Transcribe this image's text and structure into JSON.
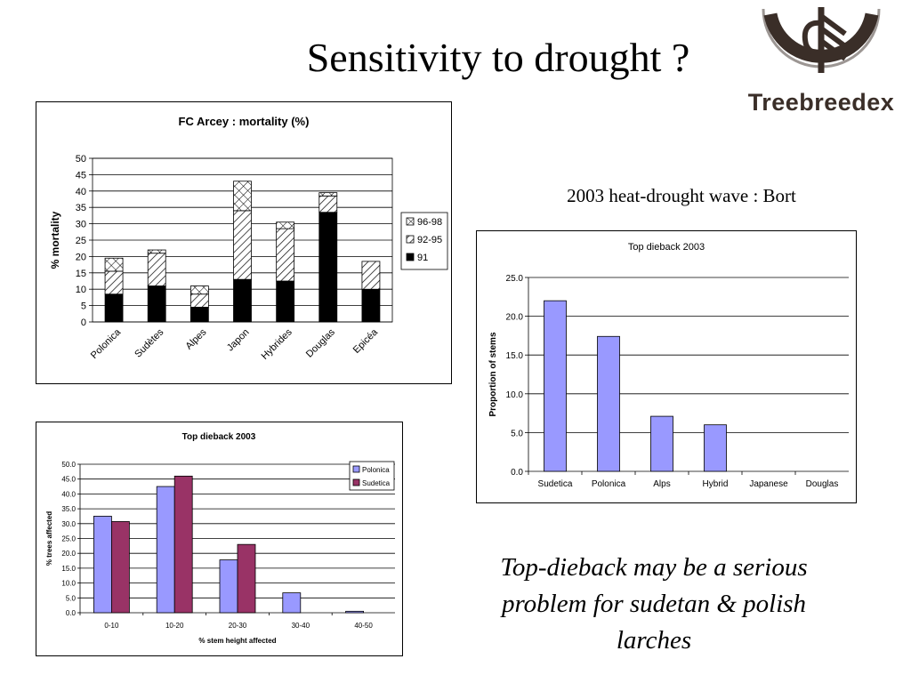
{
  "page": {
    "title": "Sensitivity to drought ?",
    "subtitle": "2003 heat-drought wave : Bort",
    "conclusion": "Top-dieback may be a serious problem for sudetan & polish larches",
    "logo_text": "Treebreedex"
  },
  "colors": {
    "logo_brown": "#3a2e28",
    "bar_blue": "#9999ff",
    "bar_maroon": "#993366",
    "black": "#000000"
  },
  "chart_data": [
    {
      "id": "mortality",
      "type": "bar",
      "stacked": true,
      "title": "FC Arcey : mortality (%)",
      "xlabel": "",
      "ylabel": "% mortality",
      "ylim": [
        0,
        50
      ],
      "yticks": [
        "0",
        "5",
        "10",
        "15",
        "20",
        "25",
        "30",
        "35",
        "40",
        "45",
        "50"
      ],
      "categories": [
        "Polonica",
        "Sudètes",
        "Alpes",
        "Japon",
        "Hybrides",
        "Douglas",
        "Epicéa"
      ],
      "series": [
        {
          "name": "91",
          "pattern": "solid",
          "values": [
            8.5,
            11,
            4.5,
            13,
            12.5,
            33.5,
            10
          ]
        },
        {
          "name": "92-95",
          "pattern": "diagonal",
          "values": [
            7,
            10,
            4,
            21,
            16,
            5,
            8.5
          ]
        },
        {
          "name": "96-98",
          "pattern": "crosshatch",
          "values": [
            4,
            1,
            2.5,
            9,
            2,
            1,
            0
          ]
        }
      ],
      "legend": "right",
      "legend_order": [
        "96-98",
        "92-95",
        "91"
      ],
      "grid": true
    },
    {
      "id": "dieback_bort",
      "type": "bar",
      "title": "Top dieback 2003",
      "xlabel": "",
      "ylabel": "Proportion of stems",
      "ylim": [
        0,
        25
      ],
      "yticks": [
        "0.0",
        "5.0",
        "10.0",
        "15.0",
        "20.0",
        "25.0"
      ],
      "categories": [
        "Sudetica",
        "Polonica",
        "Alps",
        "Hybrid",
        "Japanese",
        "Douglas"
      ],
      "series": [
        {
          "values": [
            22.0,
            17.4,
            7.1,
            6.0,
            0,
            0
          ]
        }
      ],
      "grid": true
    },
    {
      "id": "dieback_height",
      "type": "bar",
      "title": "Top dieback 2003",
      "xlabel": "% stem height affected",
      "ylabel": "% trees affected",
      "ylim": [
        0,
        50
      ],
      "yticks": [
        "0.0",
        "5.0",
        "10.0",
        "15.0",
        "20.0",
        "25.0",
        "30.0",
        "35.0",
        "40.0",
        "45.0",
        "50.0"
      ],
      "categories": [
        "0-10",
        "10-20",
        "20-30",
        "30-40",
        "40-50"
      ],
      "series": [
        {
          "name": "Polonica",
          "values": [
            32.5,
            42.5,
            17.8,
            6.7,
            0.5
          ]
        },
        {
          "name": "Sudetica",
          "values": [
            30.7,
            46.0,
            23.0,
            0,
            0
          ]
        }
      ],
      "legend": "top-right",
      "grid": true
    }
  ]
}
